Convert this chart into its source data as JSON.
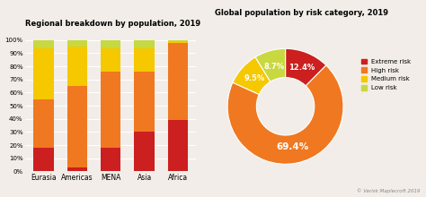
{
  "bar_title": "Regional breakdown by population, 2019",
  "donut_title": "Global population by risk category, 2019",
  "categories": [
    "Eurasia",
    "Americas",
    "MENA",
    "Asia",
    "Africa"
  ],
  "extreme_risk": [
    18,
    3,
    18,
    30,
    39
  ],
  "high_risk": [
    37,
    62,
    58,
    46,
    59
  ],
  "medium_risk": [
    39,
    30,
    18,
    18,
    1
  ],
  "low_risk": [
    6,
    5,
    6,
    6,
    1
  ],
  "colors": {
    "extreme": "#cc1f1f",
    "high": "#f07820",
    "medium": "#f5c800",
    "low": "#c8d840"
  },
  "donut_values": [
    12.4,
    69.4,
    9.5,
    8.7
  ],
  "donut_labels": [
    "12.4%",
    "69.4%",
    "9.5%",
    "8.7%"
  ],
  "donut_colors": [
    "#cc1f1f",
    "#f07820",
    "#f5c800",
    "#c8d840"
  ],
  "legend_labels": [
    "Extreme risk",
    "High risk",
    "Medium risk",
    "Low risk"
  ],
  "watermark": "© Verisk Maplecroft 2019",
  "bg_color": "#f2ede8"
}
